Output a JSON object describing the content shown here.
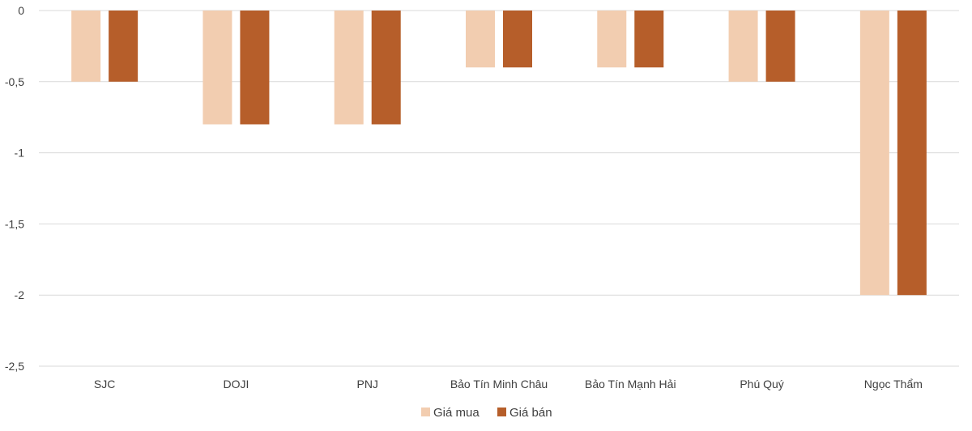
{
  "chart_data": {
    "type": "bar",
    "categories": [
      "SJC",
      "DOJI",
      "PNJ",
      "Bảo Tín Minh Châu",
      "Bảo Tín Mạnh Hải",
      "Phú Quý",
      "Ngọc Thẩm"
    ],
    "series": [
      {
        "name": "Giá mua",
        "values": [
          -0.5,
          -0.8,
          -0.8,
          -0.4,
          -0.4,
          -0.5,
          -2
        ],
        "color": "#f2cdb0"
      },
      {
        "name": "Giá bán",
        "values": [
          -0.5,
          -0.8,
          -0.8,
          -0.4,
          -0.4,
          -0.5,
          -2
        ],
        "color": "#b65e2a"
      }
    ],
    "y_ticks": [
      {
        "value": 0,
        "label": "0"
      },
      {
        "value": -0.5,
        "label": "-0,5"
      },
      {
        "value": -1,
        "label": "-1"
      },
      {
        "value": -1.5,
        "label": "-1,5"
      },
      {
        "value": -2,
        "label": "-2"
      },
      {
        "value": -2.5,
        "label": "-2,5"
      }
    ],
    "ylim": [
      -2.5,
      0
    ],
    "grid": true,
    "legend": "bottom-center",
    "gridline_color": "#d9d9d9"
  }
}
